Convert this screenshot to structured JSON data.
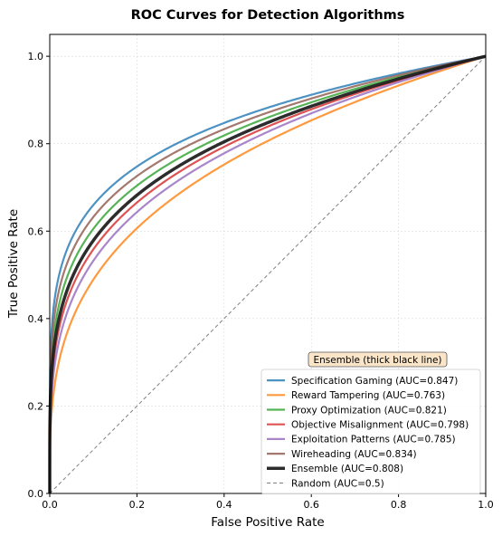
{
  "chart_data": {
    "type": "line",
    "title": "ROC Curves for Detection Algorithms",
    "xlabel": "False Positive Rate",
    "ylabel": "True Positive Rate",
    "xlim": [
      0,
      1
    ],
    "ylim": [
      0,
      1.05
    ],
    "xticks": [
      "0.0",
      "0.2",
      "0.4",
      "0.6",
      "0.8",
      "1.0"
    ],
    "yticks": [
      "0.0",
      "0.2",
      "0.4",
      "0.6",
      "0.8",
      "1.0"
    ],
    "grid": true,
    "legend_position": "lower-right",
    "annotation": "Ensemble (thick black line)",
    "series": [
      {
        "name": "Specification Gaming (AUC=0.847)",
        "auc": 0.847,
        "color": "#1f77b4",
        "style": "solid"
      },
      {
        "name": "Reward Tampering (AUC=0.763)",
        "auc": 0.763,
        "color": "#ff7f0e",
        "style": "solid"
      },
      {
        "name": "Proxy Optimization (AUC=0.821)",
        "auc": 0.821,
        "color": "#2ca02c",
        "style": "solid"
      },
      {
        "name": "Objective Misalignment (AUC=0.798)",
        "auc": 0.798,
        "color": "#d62728",
        "style": "solid"
      },
      {
        "name": "Exploitation Patterns (AUC=0.785)",
        "auc": 0.785,
        "color": "#9467bd",
        "style": "solid"
      },
      {
        "name": "Wireheading (AUC=0.834)",
        "auc": 0.834,
        "color": "#8c564b",
        "style": "solid"
      },
      {
        "name": "Ensemble (AUC=0.808)",
        "auc": 0.808,
        "color": "#1a1a1a",
        "style": "thick"
      },
      {
        "name": "Random (AUC=0.5)",
        "auc": 0.5,
        "color": "#808080",
        "style": "dashed"
      }
    ]
  }
}
